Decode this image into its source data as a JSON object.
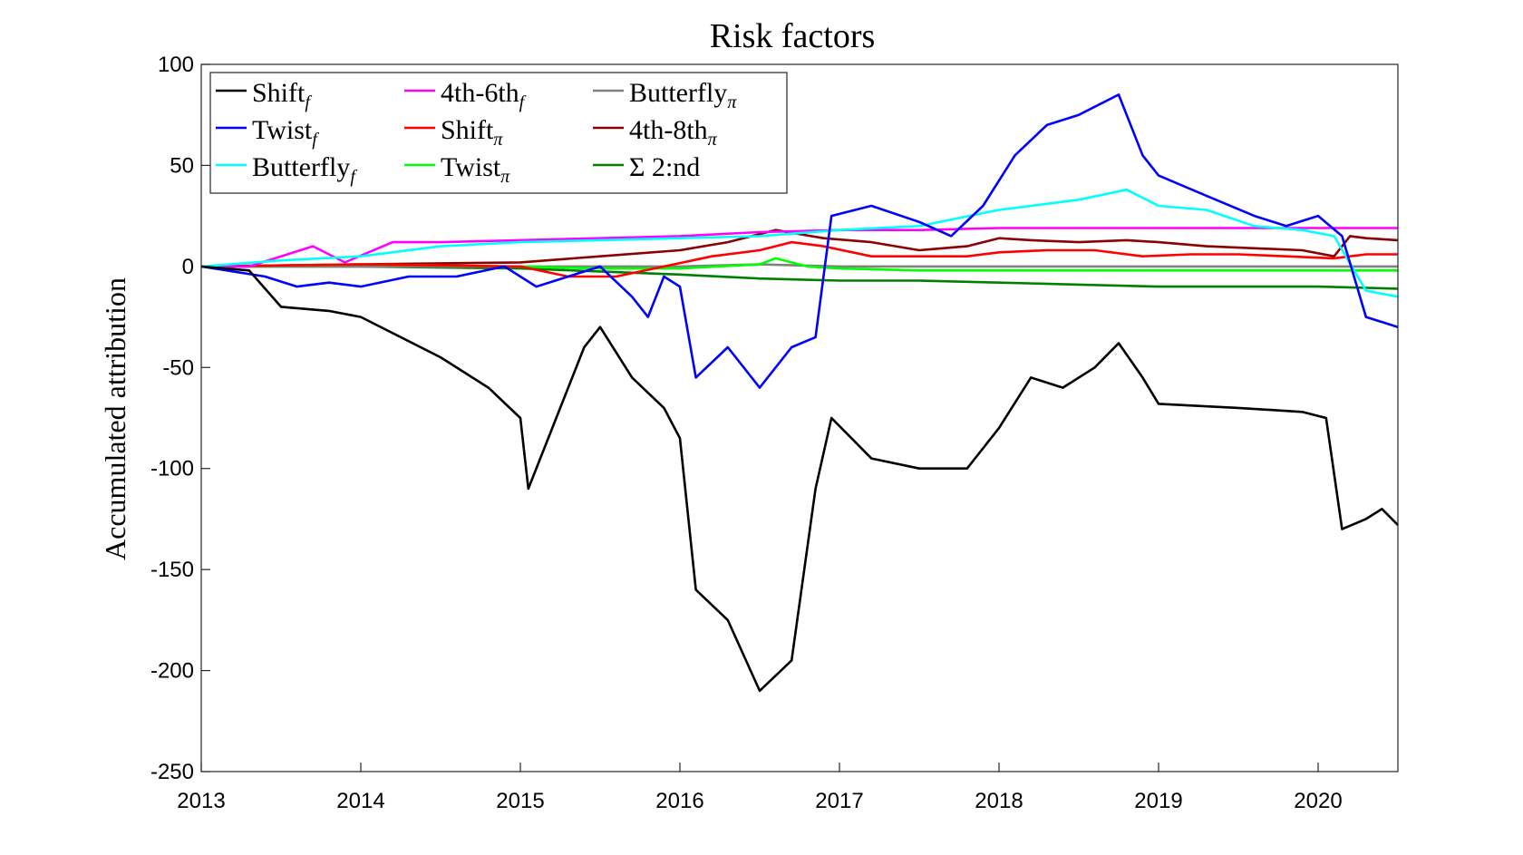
{
  "chart_data": {
    "type": "line",
    "title": "Risk factors",
    "xlabel": "",
    "ylabel": "Accumulated attribution",
    "xlim": [
      2013,
      2020.5
    ],
    "ylim": [
      -250,
      100
    ],
    "xticks": [
      "2013",
      "2014",
      "2015",
      "2016",
      "2017",
      "2018",
      "2019",
      "2020"
    ],
    "yticks": [
      "100",
      "50",
      "0",
      "-50",
      "-100",
      "-150",
      "-200",
      "-250"
    ],
    "legend_position": "top-left",
    "series": [
      {
        "name": "Shift",
        "sub": "f",
        "color": "#000000",
        "x": [
          2013,
          2013.3,
          2013.5,
          2013.8,
          2014,
          2014.5,
          2014.8,
          2015,
          2015.05,
          2015.2,
          2015.4,
          2015.5,
          2015.7,
          2015.9,
          2016,
          2016.1,
          2016.3,
          2016.5,
          2016.7,
          2016.85,
          2016.95,
          2017.2,
          2017.5,
          2017.8,
          2018,
          2018.2,
          2018.4,
          2018.6,
          2018.75,
          2018.9,
          2019,
          2019.5,
          2019.9,
          2020.05,
          2020.15,
          2020.3,
          2020.4,
          2020.5
        ],
        "y": [
          0,
          -2,
          -20,
          -22,
          -25,
          -45,
          -60,
          -75,
          -110,
          -80,
          -40,
          -30,
          -55,
          -70,
          -85,
          -160,
          -175,
          -210,
          -195,
          -110,
          -75,
          -95,
          -100,
          -100,
          -80,
          -55,
          -60,
          -50,
          -38,
          -55,
          -68,
          -70,
          -72,
          -75,
          -130,
          -125,
          -120,
          -128
        ]
      },
      {
        "name": "Twist",
        "sub": "f",
        "color": "#0000ff",
        "x": [
          2013,
          2013.4,
          2013.6,
          2013.8,
          2014,
          2014.3,
          2014.6,
          2014.9,
          2015.1,
          2015.3,
          2015.5,
          2015.7,
          2015.8,
          2015.9,
          2016,
          2016.1,
          2016.3,
          2016.5,
          2016.7,
          2016.85,
          2016.95,
          2017.2,
          2017.5,
          2017.7,
          2017.9,
          2018.1,
          2018.3,
          2018.5,
          2018.75,
          2018.9,
          2019,
          2019.3,
          2019.6,
          2019.8,
          2020,
          2020.15,
          2020.3,
          2020.5
        ],
        "y": [
          0,
          -5,
          -10,
          -8,
          -10,
          -5,
          -5,
          0,
          -10,
          -5,
          0,
          -15,
          -25,
          -5,
          -10,
          -55,
          -40,
          -60,
          -40,
          -35,
          25,
          30,
          22,
          15,
          30,
          55,
          70,
          75,
          85,
          55,
          45,
          35,
          25,
          20,
          25,
          15,
          -25,
          -30
        ]
      },
      {
        "name": "Butterfly",
        "sub": "f",
        "color": "#00ffff",
        "x": [
          2013,
          2013.5,
          2014,
          2014.5,
          2015,
          2015.5,
          2016,
          2016.5,
          2017,
          2017.5,
          2018,
          2018.5,
          2018.8,
          2019,
          2019.3,
          2019.6,
          2019.9,
          2020.1,
          2020.3,
          2020.5
        ],
        "y": [
          0,
          3,
          5,
          10,
          12,
          13,
          14,
          15,
          18,
          20,
          28,
          33,
          38,
          30,
          28,
          20,
          18,
          15,
          -12,
          -15
        ]
      },
      {
        "name": "4th-6th",
        "sub": "f",
        "color": "#ff00ff",
        "x": [
          2013,
          2013.3,
          2013.5,
          2013.7,
          2013.9,
          2014.2,
          2014.5,
          2015,
          2015.5,
          2016,
          2016.5,
          2017,
          2017.5,
          2018,
          2018.5,
          2019,
          2019.5,
          2020,
          2020.5
        ],
        "y": [
          0,
          0,
          5,
          10,
          2,
          12,
          12,
          13,
          14,
          15,
          17,
          18,
          18,
          19,
          19,
          19,
          19,
          19,
          19
        ]
      },
      {
        "name": "Shift",
        "sub": "π",
        "color": "#ff0000",
        "x": [
          2013,
          2014,
          2015,
          2015.3,
          2015.6,
          2015.9,
          2016.2,
          2016.5,
          2016.7,
          2016.9,
          2017.2,
          2017.5,
          2017.8,
          2018,
          2018.3,
          2018.6,
          2018.9,
          2019.2,
          2019.5,
          2019.8,
          2020.1,
          2020.3,
          2020.5
        ],
        "y": [
          0,
          1,
          0,
          -5,
          -5,
          0,
          5,
          8,
          12,
          10,
          5,
          5,
          5,
          7,
          8,
          8,
          5,
          6,
          6,
          5,
          4,
          6,
          6
        ]
      },
      {
        "name": "Twist",
        "sub": "π",
        "color": "#00ff00",
        "x": [
          2013,
          2014,
          2015,
          2015.5,
          2016,
          2016.5,
          2016.6,
          2016.8,
          2017,
          2017.5,
          2018,
          2018.5,
          2019,
          2019.5,
          2020,
          2020.5
        ],
        "y": [
          0,
          1,
          0,
          -1,
          -1,
          1,
          4,
          0,
          -1,
          -2,
          -2,
          -2,
          -2,
          -2,
          -2,
          -2
        ]
      },
      {
        "name": "Butterfly",
        "sub": "π",
        "color": "#808080",
        "x": [
          2013,
          2014,
          2015,
          2016,
          2016.5,
          2017,
          2018,
          2019,
          2020,
          2020.5
        ],
        "y": [
          0,
          0,
          0,
          0,
          1,
          0,
          0,
          0,
          0,
          0
        ]
      },
      {
        "name": "4th-8th",
        "sub": "π",
        "color": "#8b0000",
        "x": [
          2013,
          2014,
          2015,
          2015.5,
          2016,
          2016.3,
          2016.6,
          2016.9,
          2017.2,
          2017.5,
          2017.8,
          2018,
          2018.2,
          2018.5,
          2018.8,
          2019,
          2019.3,
          2019.6,
          2019.9,
          2020.1,
          2020.2,
          2020.3,
          2020.5
        ],
        "y": [
          0,
          1,
          2,
          5,
          8,
          12,
          18,
          14,
          12,
          8,
          10,
          14,
          13,
          12,
          13,
          12,
          10,
          9,
          8,
          5,
          15,
          14,
          13
        ]
      },
      {
        "name": "Σ 2:nd",
        "sub": "",
        "color": "#008000",
        "x": [
          2013,
          2014,
          2015,
          2016,
          2016.5,
          2017,
          2017.5,
          2018,
          2018.5,
          2019,
          2019.5,
          2020,
          2020.5
        ],
        "y": [
          0,
          0,
          -1,
          -4,
          -6,
          -7,
          -7,
          -8,
          -9,
          -10,
          -10,
          -10,
          -11
        ]
      }
    ]
  }
}
